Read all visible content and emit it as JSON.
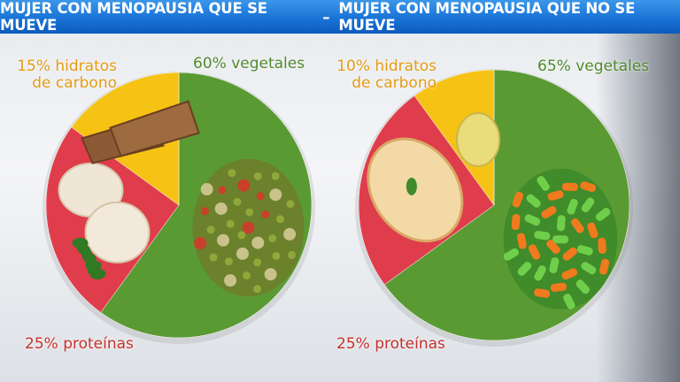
{
  "title": {
    "left": "MUJER CON MENOPAUSIA QUE SE MUEVE",
    "separator": "–",
    "right": "MUJER CON MENOPAUSIA QUE NO SE MUEVE"
  },
  "colors": {
    "title_bar": "#1a73d6",
    "vegetales": "#5a9a33",
    "proteinas": "#e03d4c",
    "hidratos": "#f6c315",
    "label_vegetales": "#4f8a2c",
    "label_proteinas": "#c9302c",
    "label_hidratos": "#e69b12"
  },
  "chart_data": [
    {
      "type": "pie",
      "title": "MUJER CON MENOPAUSIA QUE SE MUEVE",
      "slices": [
        {
          "label_text": "60% vegetales",
          "value": 60,
          "color": "#5a9a33",
          "food": "peas-artichoke-stew"
        },
        {
          "label_text": "25% proteínas",
          "value": 25,
          "color": "#e03d4c",
          "food": "chicken-pieces-parsley"
        },
        {
          "label_text": "15% hidratos de carbono",
          "label_lines": [
            "15% hidratos",
            "de carbono"
          ],
          "value": 15,
          "color": "#f6c315",
          "food": "whole-wheat-bread"
        }
      ]
    },
    {
      "type": "pie",
      "title": "MUJER CON MENOPAUSIA QUE NO SE MUEVE",
      "slices": [
        {
          "label_text": "65% vegetales",
          "value": 65,
          "color": "#5a9a33",
          "food": "green-beans-carrots"
        },
        {
          "label_text": "25% proteínas",
          "value": 25,
          "color": "#e03d4c",
          "food": "french-omelette"
        },
        {
          "label_text": "10% hidratos de carbono",
          "label_lines": [
            "10% hidratos",
            "de carbono"
          ],
          "value": 10,
          "color": "#f6c315",
          "food": "boiled-potato"
        }
      ]
    }
  ]
}
